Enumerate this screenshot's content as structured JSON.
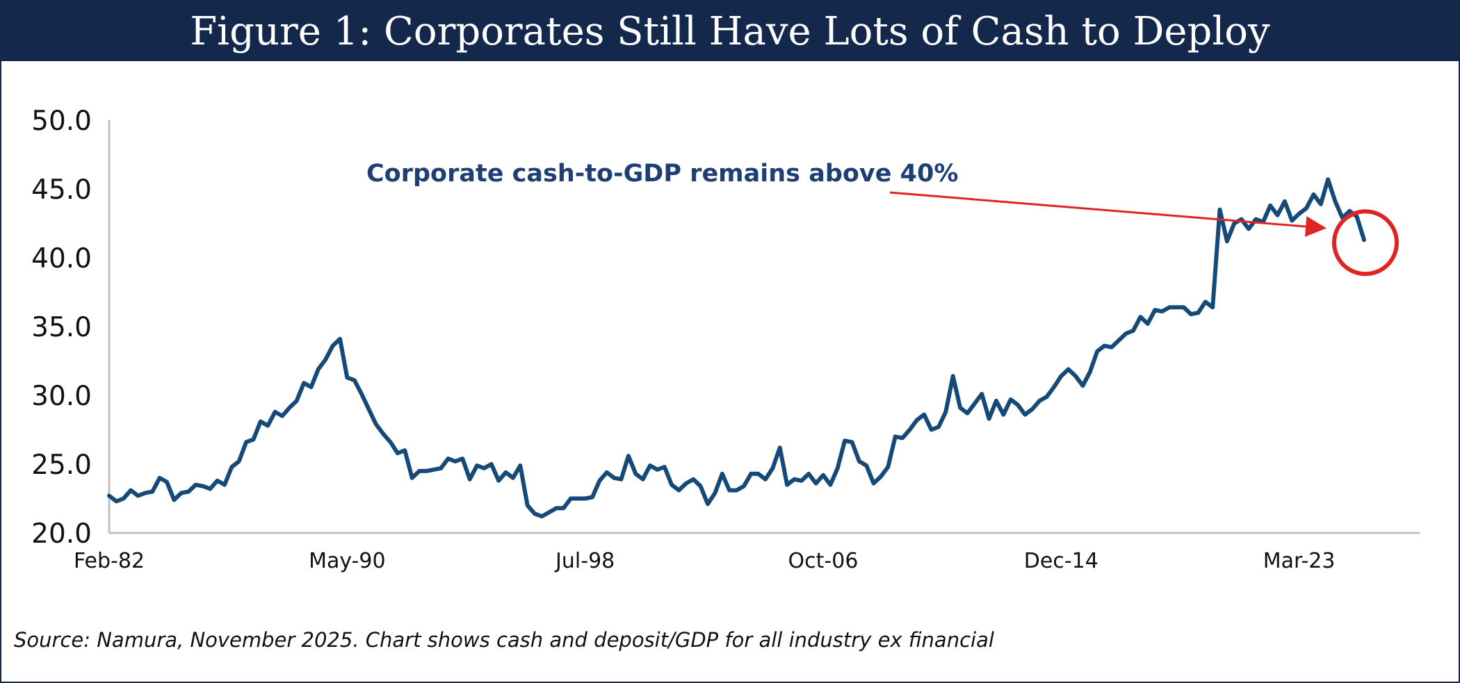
{
  "header": {
    "title": "Figure 1: Corporates Still Have Lots of Cash to Deploy"
  },
  "footer": {
    "source": "Source: Namura, November 2025. Chart shows cash and deposit/GDP for all industry ex financial"
  },
  "colors": {
    "banner": "#14284b",
    "line": "#154a78",
    "annotation_text": "#1f3f74",
    "annotation_mark": "#e02424",
    "axis": "#bfbfbf"
  },
  "chart_data": {
    "type": "line",
    "title": "",
    "xlabel": "",
    "ylabel": "",
    "ylim": [
      20.0,
      50.0
    ],
    "yticks": [
      "20.0",
      "25.0",
      "30.0",
      "35.0",
      "40.0",
      "45.0",
      "50.0"
    ],
    "xticks": [
      "Feb-82",
      "May-90",
      "Jul-98",
      "Oct-06",
      "Dec-14",
      "Mar-23"
    ],
    "grid": false,
    "legend": "none",
    "annotation": {
      "text": "Corporate cash-to-GDP remains above 40%",
      "points_to": "latest values, circled"
    },
    "series": [
      {
        "values": [
          22.7,
          22.3,
          22.5,
          23.1,
          22.7,
          22.9,
          23.0,
          24.0,
          23.7,
          22.4,
          22.9,
          23.0,
          23.5,
          23.4,
          23.2,
          23.8,
          23.5,
          24.8,
          25.2,
          26.6,
          26.8,
          28.1,
          27.8,
          28.8,
          28.5,
          29.1,
          29.6,
          30.9,
          30.6,
          31.9,
          32.6,
          33.6,
          34.1,
          31.3,
          31.1,
          30.1,
          29.0,
          27.9,
          27.2,
          26.6,
          25.8,
          26.0,
          24.0,
          24.5,
          24.5,
          24.6,
          24.7,
          25.4,
          25.2,
          25.4,
          23.9,
          24.9,
          24.7,
          25.0,
          23.8,
          24.4,
          24.0,
          24.9,
          22.0,
          21.4,
          21.2,
          21.5,
          21.8,
          21.8,
          22.5,
          22.5,
          22.5,
          22.6,
          23.8,
          24.4,
          24.0,
          23.9,
          25.6,
          24.3,
          23.9,
          24.9,
          24.6,
          24.8,
          23.5,
          23.1,
          23.6,
          23.9,
          23.4,
          22.1,
          22.9,
          24.3,
          23.1,
          23.1,
          23.4,
          24.3,
          24.3,
          23.9,
          24.7,
          26.2,
          23.5,
          23.9,
          23.8,
          24.3,
          23.6,
          24.2,
          23.5,
          24.7,
          26.7,
          26.6,
          25.2,
          24.9,
          23.6,
          24.1,
          24.8,
          27.0,
          26.9,
          27.5,
          28.2,
          28.6,
          27.5,
          27.7,
          28.8,
          31.4,
          29.1,
          28.7,
          29.4,
          30.1,
          28.3,
          29.6,
          28.6,
          29.7,
          29.3,
          28.6,
          29.0,
          29.6,
          29.9,
          30.6,
          31.4,
          31.9,
          31.4,
          30.7,
          31.7,
          33.2,
          33.6,
          33.5,
          34.0,
          34.5,
          34.7,
          35.7,
          35.2,
          36.2,
          36.1,
          36.4,
          36.4,
          36.4,
          35.9,
          36.0,
          36.8,
          36.4,
          43.5,
          41.2,
          42.5,
          42.8,
          42.1,
          42.8,
          42.6,
          43.8,
          43.1,
          44.1,
          42.7,
          43.2,
          43.6,
          44.6,
          43.9,
          45.7,
          44.1,
          42.9,
          43.4,
          43.0,
          41.3
        ]
      }
    ]
  }
}
